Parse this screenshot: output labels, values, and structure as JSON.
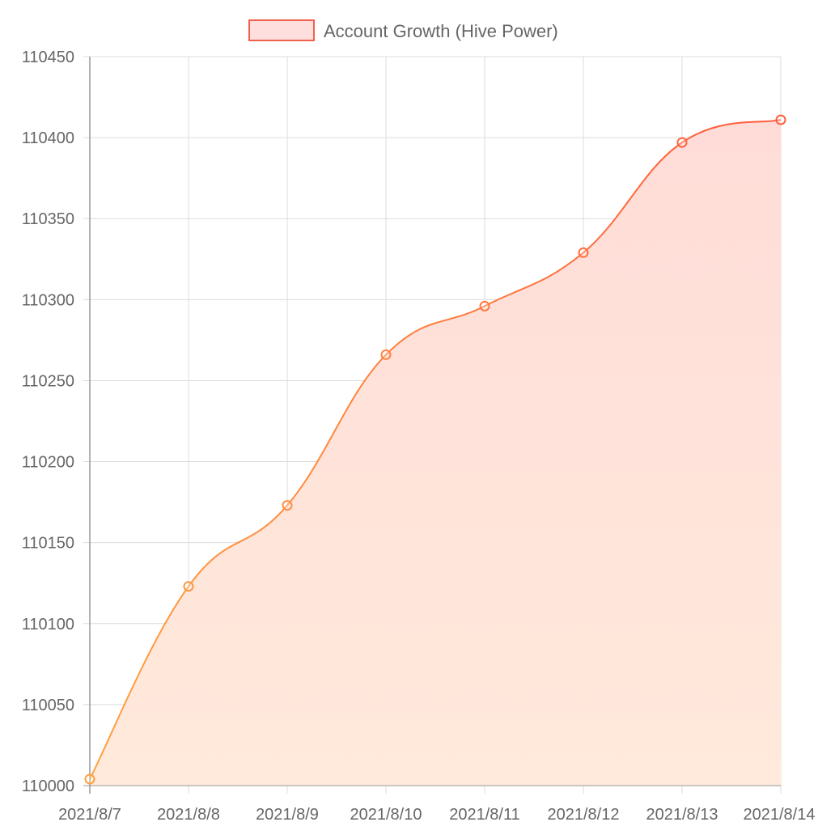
{
  "chart_data": {
    "type": "area",
    "categories": [
      "2021/8/7",
      "2021/8/8",
      "2021/8/9",
      "2021/8/10",
      "2021/8/11",
      "2021/8/12",
      "2021/8/13",
      "2021/8/14"
    ],
    "series": [
      {
        "name": "Account Growth (Hive Power)",
        "values": [
          110004,
          110123,
          110173,
          110266,
          110296,
          110329,
          110397,
          110411
        ]
      }
    ],
    "ylim": [
      110000,
      110450
    ],
    "y_ticks": [
      "110000",
      "110050",
      "110100",
      "110150",
      "110200",
      "110250",
      "110300",
      "110350",
      "110400",
      "110450"
    ],
    "grid": true,
    "legend_position": "top-center",
    "colors": {
      "line_start": "#ffa040",
      "line_end": "#ff5a3c",
      "fill_top": "#ffdcd8",
      "fill_bottom": "#ffeadb",
      "grid": "#dcdcdc",
      "axis": "#999999",
      "legend_fill": "#ffdede",
      "legend_border": "#f0604c"
    }
  }
}
